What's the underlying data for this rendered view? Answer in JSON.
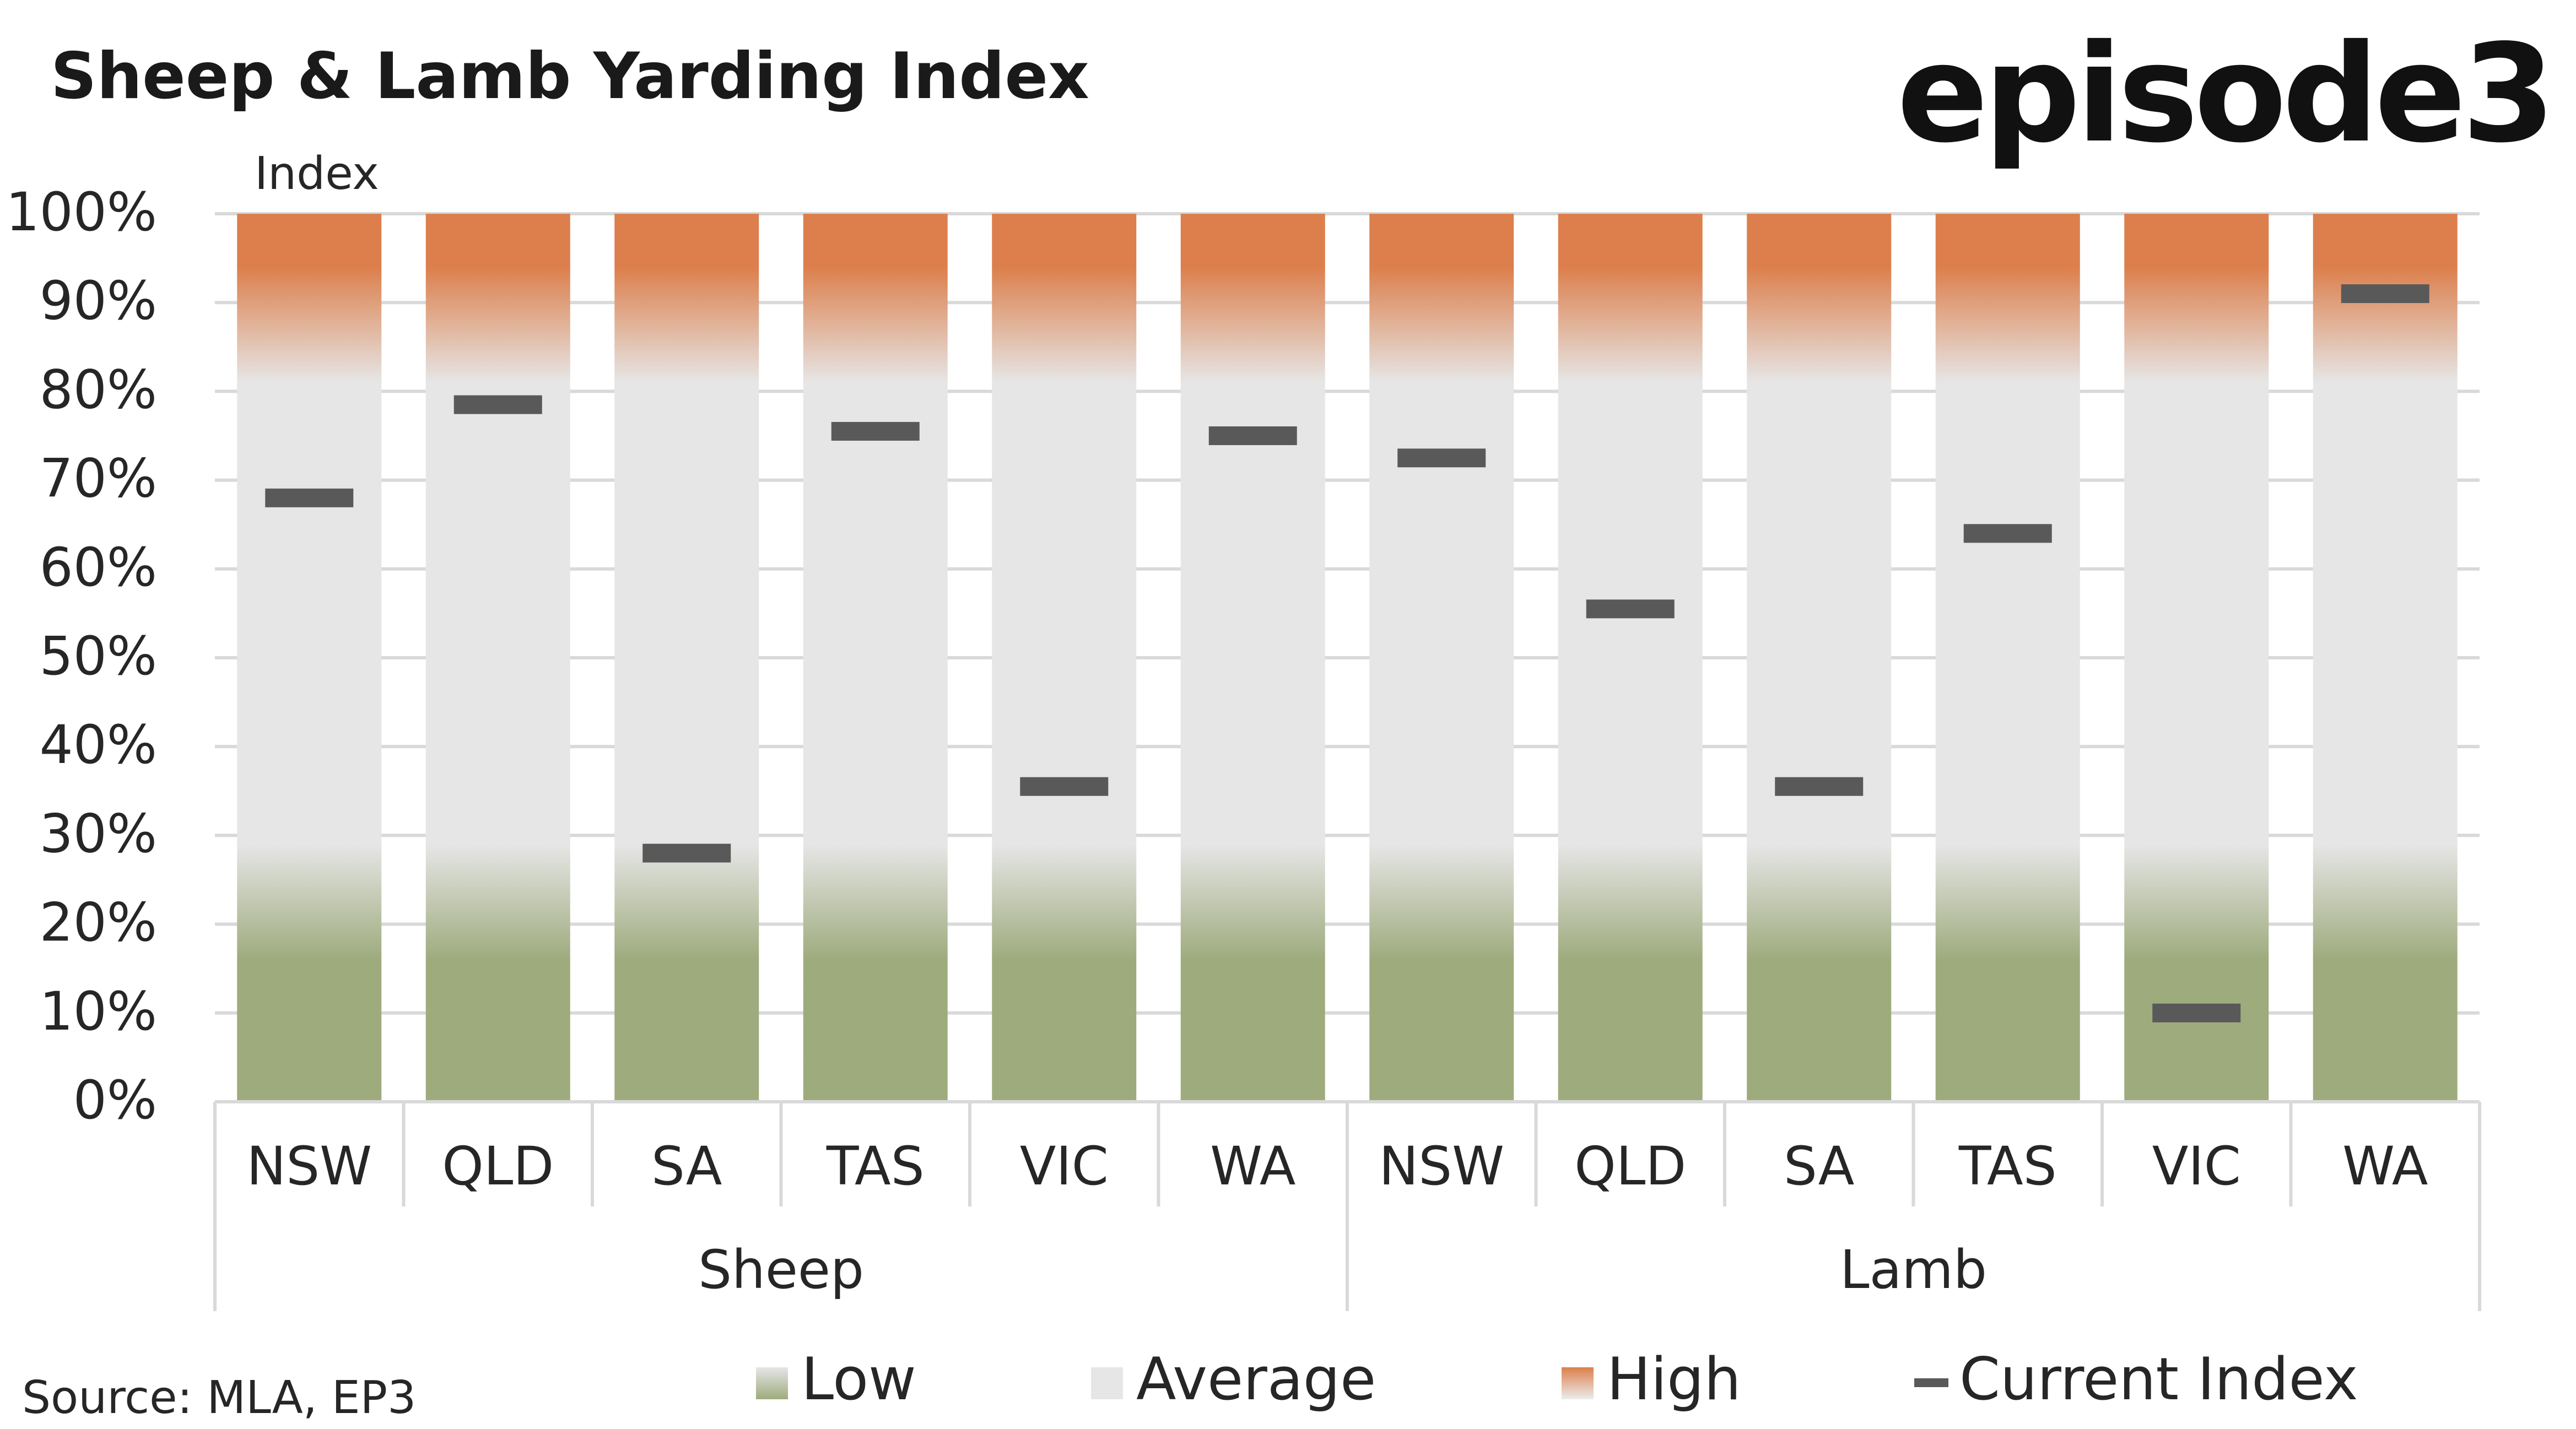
{
  "title": "Sheep & Lamb Yarding Index",
  "logo": "episode3",
  "source": "Source: MLA, EP3",
  "chart_data": {
    "type": "bar",
    "title": "Sheep & Lamb Yarding Index",
    "ylabel": "Index",
    "xlabel": "",
    "ylim": [
      0,
      100
    ],
    "y_ticks": [
      "0%",
      "10%",
      "20%",
      "30%",
      "40%",
      "50%",
      "60%",
      "70%",
      "80%",
      "90%",
      "100%"
    ],
    "y_tick_values": [
      0,
      10,
      20,
      30,
      40,
      50,
      60,
      70,
      80,
      90,
      100
    ],
    "grid": true,
    "groups": [
      {
        "name": "Sheep",
        "categories": [
          "NSW",
          "QLD",
          "SA",
          "TAS",
          "VIC",
          "WA"
        ]
      },
      {
        "name": "Lamb",
        "categories": [
          "NSW",
          "QLD",
          "SA",
          "TAS",
          "VIC",
          "WA"
        ]
      }
    ],
    "categories": [
      "NSW",
      "QLD",
      "SA",
      "TAS",
      "VIC",
      "WA",
      "NSW",
      "QLD",
      "SA",
      "TAS",
      "VIC",
      "WA"
    ],
    "bands": [
      {
        "name": "Low",
        "from": 0,
        "to": 20,
        "color": "#9eab7d"
      },
      {
        "name": "Average",
        "from": 20,
        "to": 80,
        "color": "#e6e6e6"
      },
      {
        "name": "High",
        "from": 80,
        "to": 100,
        "color": "#dc7f4c"
      }
    ],
    "series": [
      {
        "name": "Current Index",
        "values": [
          68,
          78.5,
          28,
          75.5,
          35.5,
          75,
          72.5,
          55.5,
          35.5,
          64,
          10,
          91
        ],
        "color": "#595959"
      }
    ],
    "legend": {
      "placement": "bottom",
      "items": [
        {
          "label": "Low",
          "kind": "low"
        },
        {
          "label": "Average",
          "kind": "average"
        },
        {
          "label": "High",
          "kind": "high"
        },
        {
          "label": "Current Index",
          "kind": "marker"
        }
      ]
    }
  }
}
